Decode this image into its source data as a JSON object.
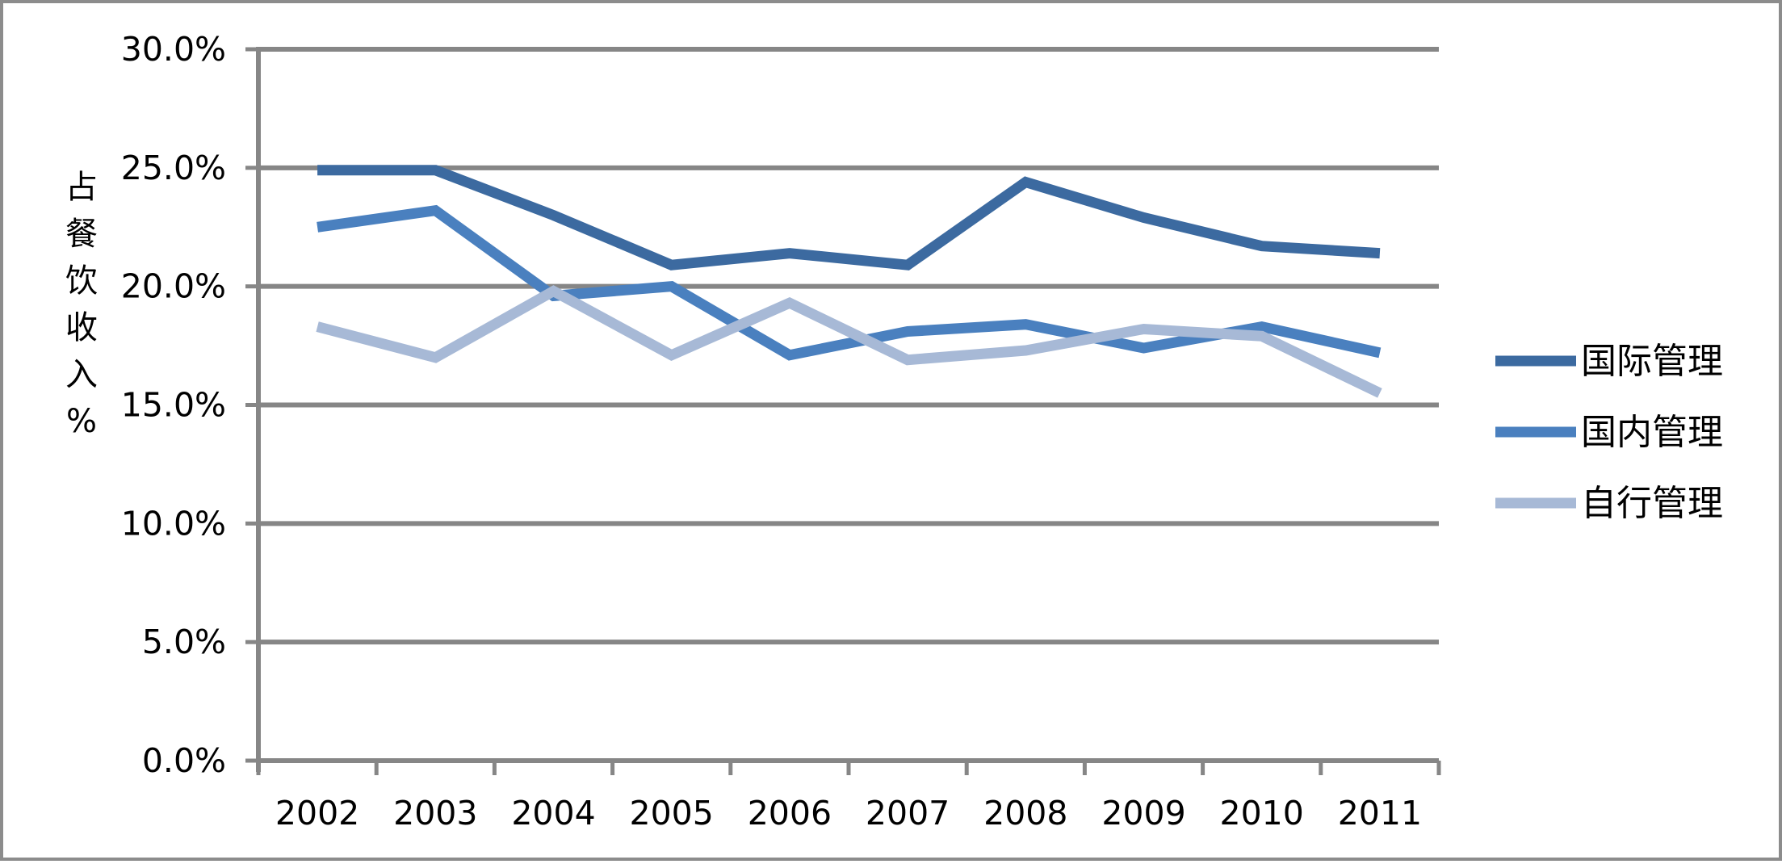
{
  "chart_data": {
    "type": "line",
    "title": "",
    "xlabel": "",
    "ylabel": "占餐饮收入%",
    "ylim": [
      0,
      30
    ],
    "y_ticks": [
      "0.0%",
      "5.0%",
      "10.0%",
      "15.0%",
      "20.0%",
      "25.0%",
      "30.0%"
    ],
    "y_tick_values": [
      0,
      5,
      10,
      15,
      20,
      25,
      30
    ],
    "grid": true,
    "legend_position": "right",
    "categories": [
      "2002",
      "2003",
      "2004",
      "2005",
      "2006",
      "2007",
      "2008",
      "2009",
      "2010",
      "2011"
    ],
    "series": [
      {
        "name": "国际管理",
        "color": "#3c6aa0",
        "values": [
          24.9,
          24.9,
          23.0,
          20.9,
          21.4,
          20.9,
          24.4,
          22.9,
          21.7,
          21.4
        ]
      },
      {
        "name": "国内管理",
        "color": "#4a80bf",
        "values": [
          22.5,
          23.2,
          19.6,
          20.0,
          17.1,
          18.1,
          18.4,
          17.4,
          18.3,
          17.2
        ]
      },
      {
        "name": "自行管理",
        "color": "#a7b9d6",
        "values": [
          18.3,
          17.0,
          19.8,
          17.1,
          19.3,
          16.9,
          17.3,
          18.2,
          17.9,
          15.5
        ]
      }
    ]
  }
}
